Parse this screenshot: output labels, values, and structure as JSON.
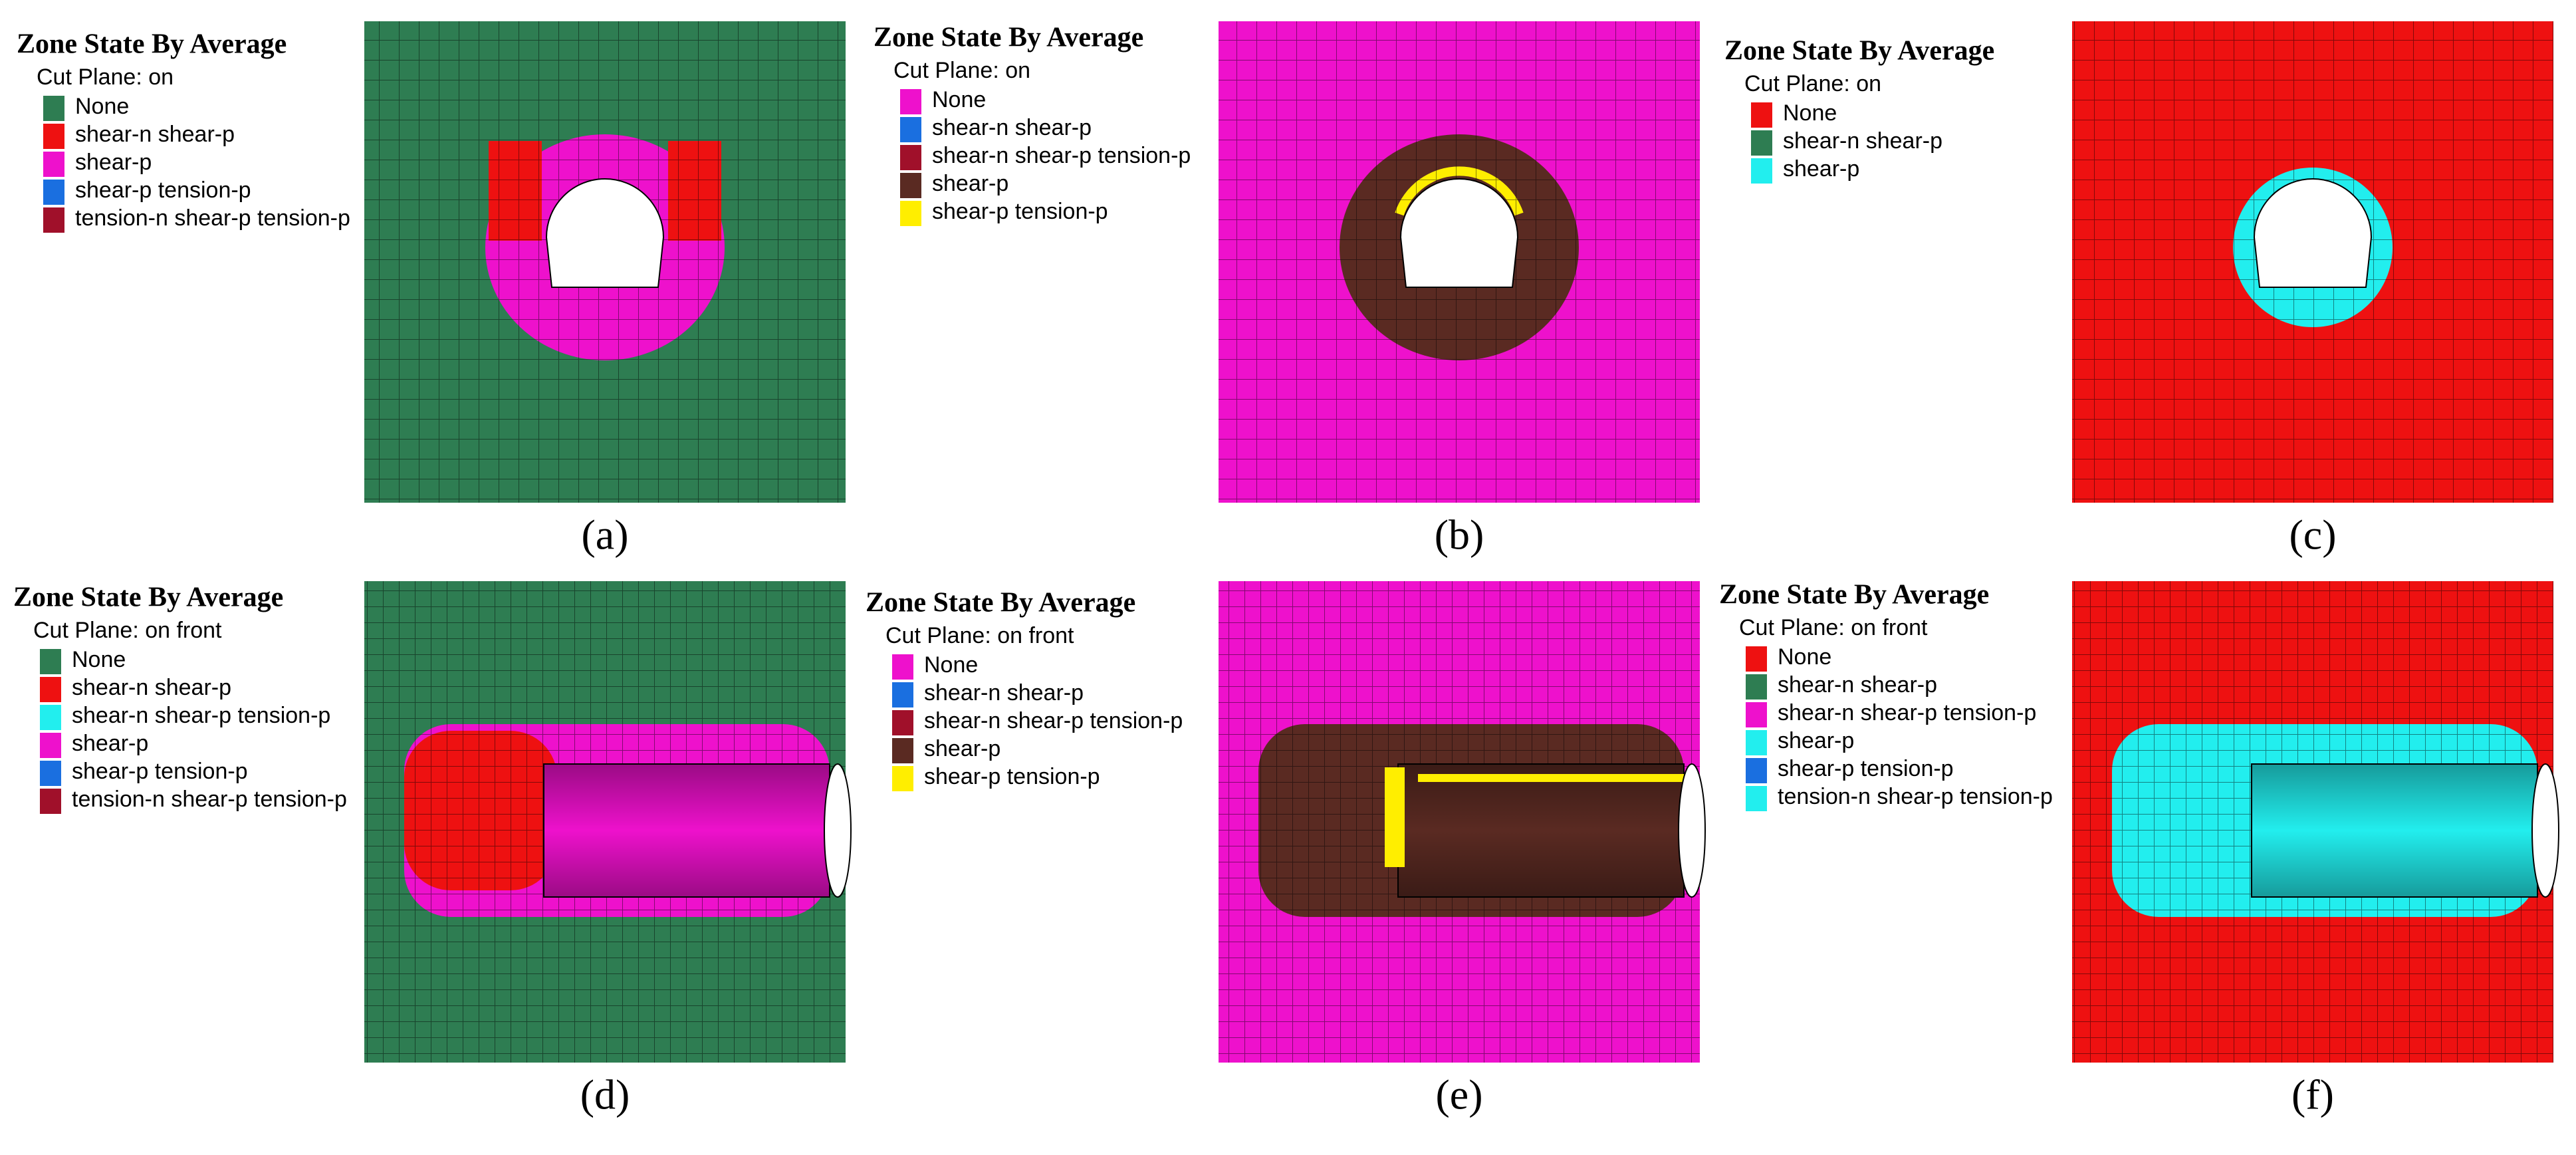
{
  "panels": [
    {
      "title": "Zone State By Average",
      "subtitle": "Cut Plane: on",
      "caption": "(a)",
      "legend": [
        {
          "label": "None",
          "color": "#2e7d52"
        },
        {
          "label": "shear-n shear-p",
          "color": "#ee1111"
        },
        {
          "label": "shear-p",
          "color": "#ee11cc"
        },
        {
          "label": "shear-p tension-p",
          "color": "#1a6fe0"
        },
        {
          "label": "tension-n shear-p tension-p",
          "color": "#a0102a"
        }
      ]
    },
    {
      "title": "Zone State By Average",
      "subtitle": "Cut Plane: on",
      "caption": "(b)",
      "legend": [
        {
          "label": "None",
          "color": "#ee11cc"
        },
        {
          "label": "shear-n shear-p",
          "color": "#1a6fe0"
        },
        {
          "label": "shear-n shear-p tension-p",
          "color": "#a0102a"
        },
        {
          "label": "shear-p",
          "color": "#5a2a22"
        },
        {
          "label": "shear-p tension-p",
          "color": "#ffee00"
        }
      ]
    },
    {
      "title": "Zone State By Average",
      "subtitle": "Cut Plane: on",
      "caption": "(c)",
      "legend": [
        {
          "label": "None",
          "color": "#ee1111"
        },
        {
          "label": "shear-n shear-p",
          "color": "#2e7d52"
        },
        {
          "label": "shear-p",
          "color": "#22eeee"
        }
      ]
    },
    {
      "title": "Zone State By Average",
      "subtitle": "Cut Plane: on front",
      "caption": "(d)",
      "legend": [
        {
          "label": "None",
          "color": "#2e7d52"
        },
        {
          "label": "shear-n shear-p",
          "color": "#ee1111"
        },
        {
          "label": "shear-n shear-p tension-p",
          "color": "#22eeee"
        },
        {
          "label": "shear-p",
          "color": "#ee11cc"
        },
        {
          "label": "shear-p tension-p",
          "color": "#1a6fe0"
        },
        {
          "label": "tension-n shear-p tension-p",
          "color": "#a0102a"
        }
      ]
    },
    {
      "title": "Zone State By Average",
      "subtitle": "Cut Plane: on front",
      "caption": "(e)",
      "legend": [
        {
          "label": "None",
          "color": "#ee11cc"
        },
        {
          "label": "shear-n shear-p",
          "color": "#1a6fe0"
        },
        {
          "label": "shear-n shear-p tension-p",
          "color": "#a0102a"
        },
        {
          "label": "shear-p",
          "color": "#5a2a22"
        },
        {
          "label": "shear-p tension-p",
          "color": "#ffee00"
        }
      ]
    },
    {
      "title": "Zone State By Average",
      "subtitle": "Cut Plane: on front",
      "caption": "(f)",
      "legend": [
        {
          "label": "None",
          "color": "#ee1111"
        },
        {
          "label": "shear-n shear-p",
          "color": "#2e7d52"
        },
        {
          "label": "shear-n shear-p tension-p",
          "color": "#ee11cc"
        },
        {
          "label": "shear-p",
          "color": "#22eeee"
        },
        {
          "label": "shear-p tension-p",
          "color": "#1a6fe0"
        },
        {
          "label": "tension-n shear-p tension-p",
          "color": "#22eeee"
        }
      ]
    }
  ]
}
